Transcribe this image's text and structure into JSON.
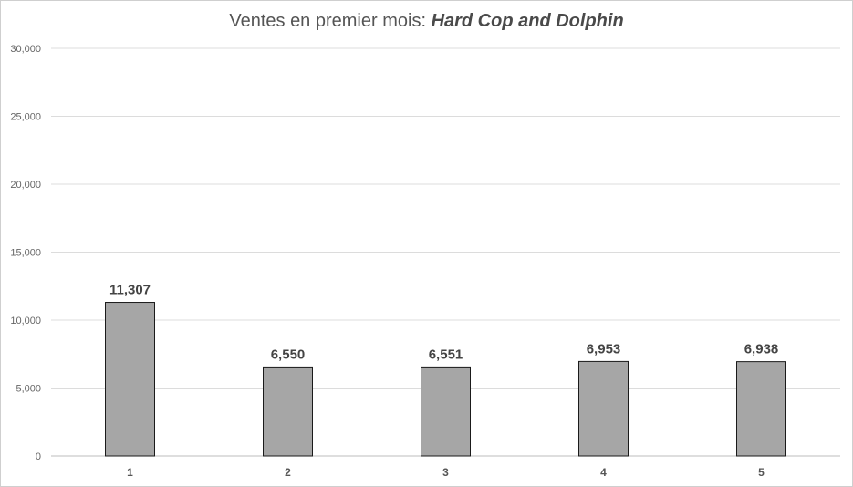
{
  "chart_data": {
    "type": "bar",
    "title_prefix": "Ventes en premier mois: ",
    "title_name": "Hard Cop and Dolphin",
    "xlabel": "",
    "ylabel": "",
    "categories": [
      "1",
      "2",
      "3",
      "4",
      "5"
    ],
    "values": [
      11307,
      6550,
      6551,
      6953,
      6938
    ],
    "data_labels": [
      "11,307",
      "6,550",
      "6,551",
      "6,953",
      "6,938"
    ],
    "ylim": [
      0,
      30000
    ],
    "yticks": [
      "0",
      "5,000",
      "10,000",
      "15,000",
      "20,000",
      "25,000",
      "30,000"
    ],
    "ytick_values": [
      0,
      5000,
      10000,
      15000,
      20000,
      25000,
      30000
    ],
    "grid": true,
    "legend": "none",
    "colors": {
      "bar_fill": "#a6a6a6",
      "bar_stroke": "#1a1a1a",
      "grid": "#dcdcdc"
    }
  }
}
